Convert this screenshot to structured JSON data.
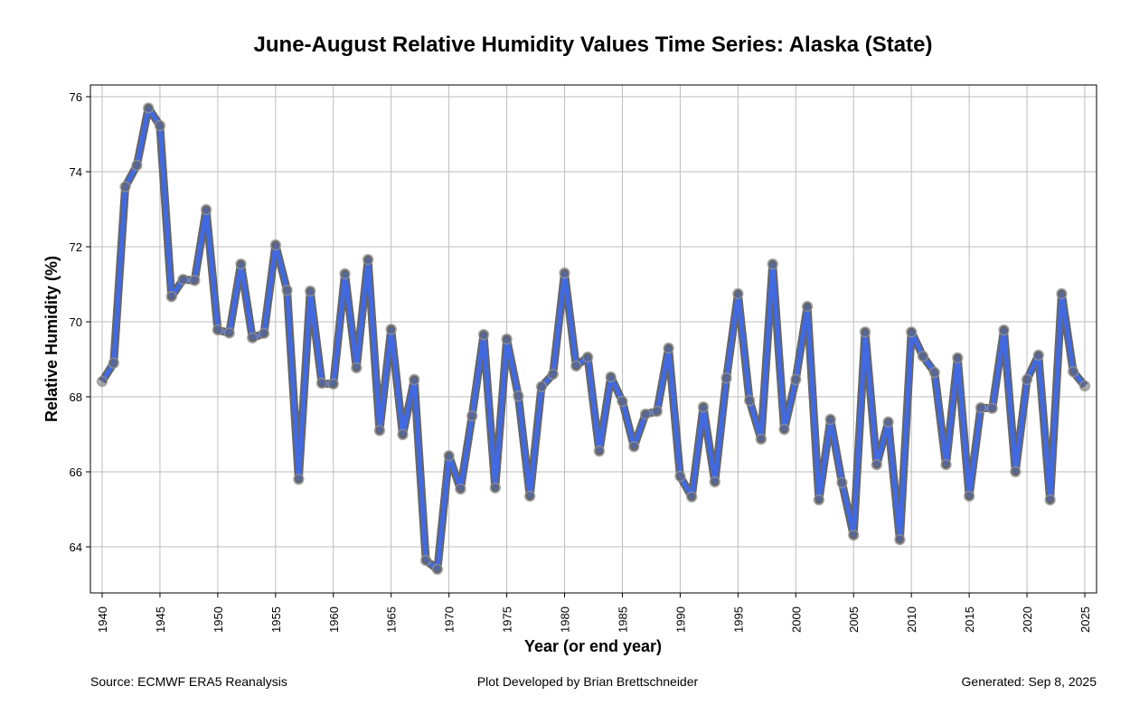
{
  "chart_data": {
    "type": "line",
    "title": "June-August Relative Humidity Values Time Series: Alaska (State)",
    "xlabel": "Year (or end year)",
    "ylabel": "Relative Humidity (%)",
    "xlim": [
      1939,
      2026
    ],
    "ylim": [
      62.8,
      76.3
    ],
    "grid": true,
    "x_ticks": [
      1940,
      1945,
      1950,
      1955,
      1960,
      1965,
      1970,
      1975,
      1980,
      1985,
      1990,
      1995,
      2000,
      2005,
      2010,
      2015,
      2020,
      2025
    ],
    "y_ticks": [
      64,
      66,
      68,
      70,
      72,
      74,
      76
    ],
    "series": [
      {
        "name": "Relative Humidity",
        "color": "#4169e1",
        "x": [
          1940,
          1941,
          1942,
          1943,
          1944,
          1945,
          1946,
          1947,
          1948,
          1949,
          1950,
          1951,
          1952,
          1953,
          1954,
          1955,
          1956,
          1957,
          1958,
          1959,
          1960,
          1961,
          1962,
          1963,
          1964,
          1965,
          1966,
          1967,
          1968,
          1969,
          1970,
          1971,
          1972,
          1973,
          1974,
          1975,
          1976,
          1977,
          1978,
          1979,
          1980,
          1981,
          1982,
          1983,
          1984,
          1985,
          1986,
          1987,
          1988,
          1989,
          1990,
          1991,
          1992,
          1993,
          1994,
          1995,
          1996,
          1997,
          1998,
          1999,
          2000,
          2001,
          2002,
          2003,
          2004,
          2005,
          2006,
          2007,
          2008,
          2009,
          2010,
          2011,
          2012,
          2013,
          2014,
          2015,
          2016,
          2017,
          2018,
          2019,
          2020,
          2021,
          2022,
          2023,
          2024,
          2025
        ],
        "values": [
          68.41,
          68.9,
          73.6,
          74.17,
          75.7,
          75.23,
          70.67,
          71.13,
          71.1,
          72.99,
          69.78,
          69.7,
          71.54,
          69.57,
          69.69,
          72.05,
          70.84,
          65.8,
          70.82,
          68.36,
          68.34,
          71.28,
          68.77,
          71.66,
          67.1,
          69.8,
          66.99,
          68.46,
          63.64,
          63.4,
          66.43,
          65.54,
          67.49,
          69.66,
          65.57,
          69.54,
          68.02,
          65.35,
          68.27,
          68.6,
          71.3,
          68.82,
          69.06,
          66.55,
          68.53,
          67.88,
          66.67,
          67.54,
          67.61,
          69.3,
          65.88,
          65.33,
          67.73,
          65.73,
          68.5,
          70.75,
          67.9,
          66.87,
          71.54,
          67.13,
          68.46,
          70.41,
          65.25,
          67.4,
          65.71,
          64.31,
          69.73,
          66.19,
          67.33,
          64.19,
          69.73,
          69.08,
          68.65,
          66.19,
          69.04,
          65.35,
          67.71,
          67.69,
          69.78,
          66.0,
          68.46,
          69.11,
          65.25,
          70.75,
          68.67,
          68.29
        ]
      }
    ]
  },
  "footer": {
    "source": "Source: ECMWF ERA5 Reanalysis",
    "credit": "Plot Developed by Brian Brettschneider",
    "generated": "Generated: Sep 8, 2025"
  }
}
